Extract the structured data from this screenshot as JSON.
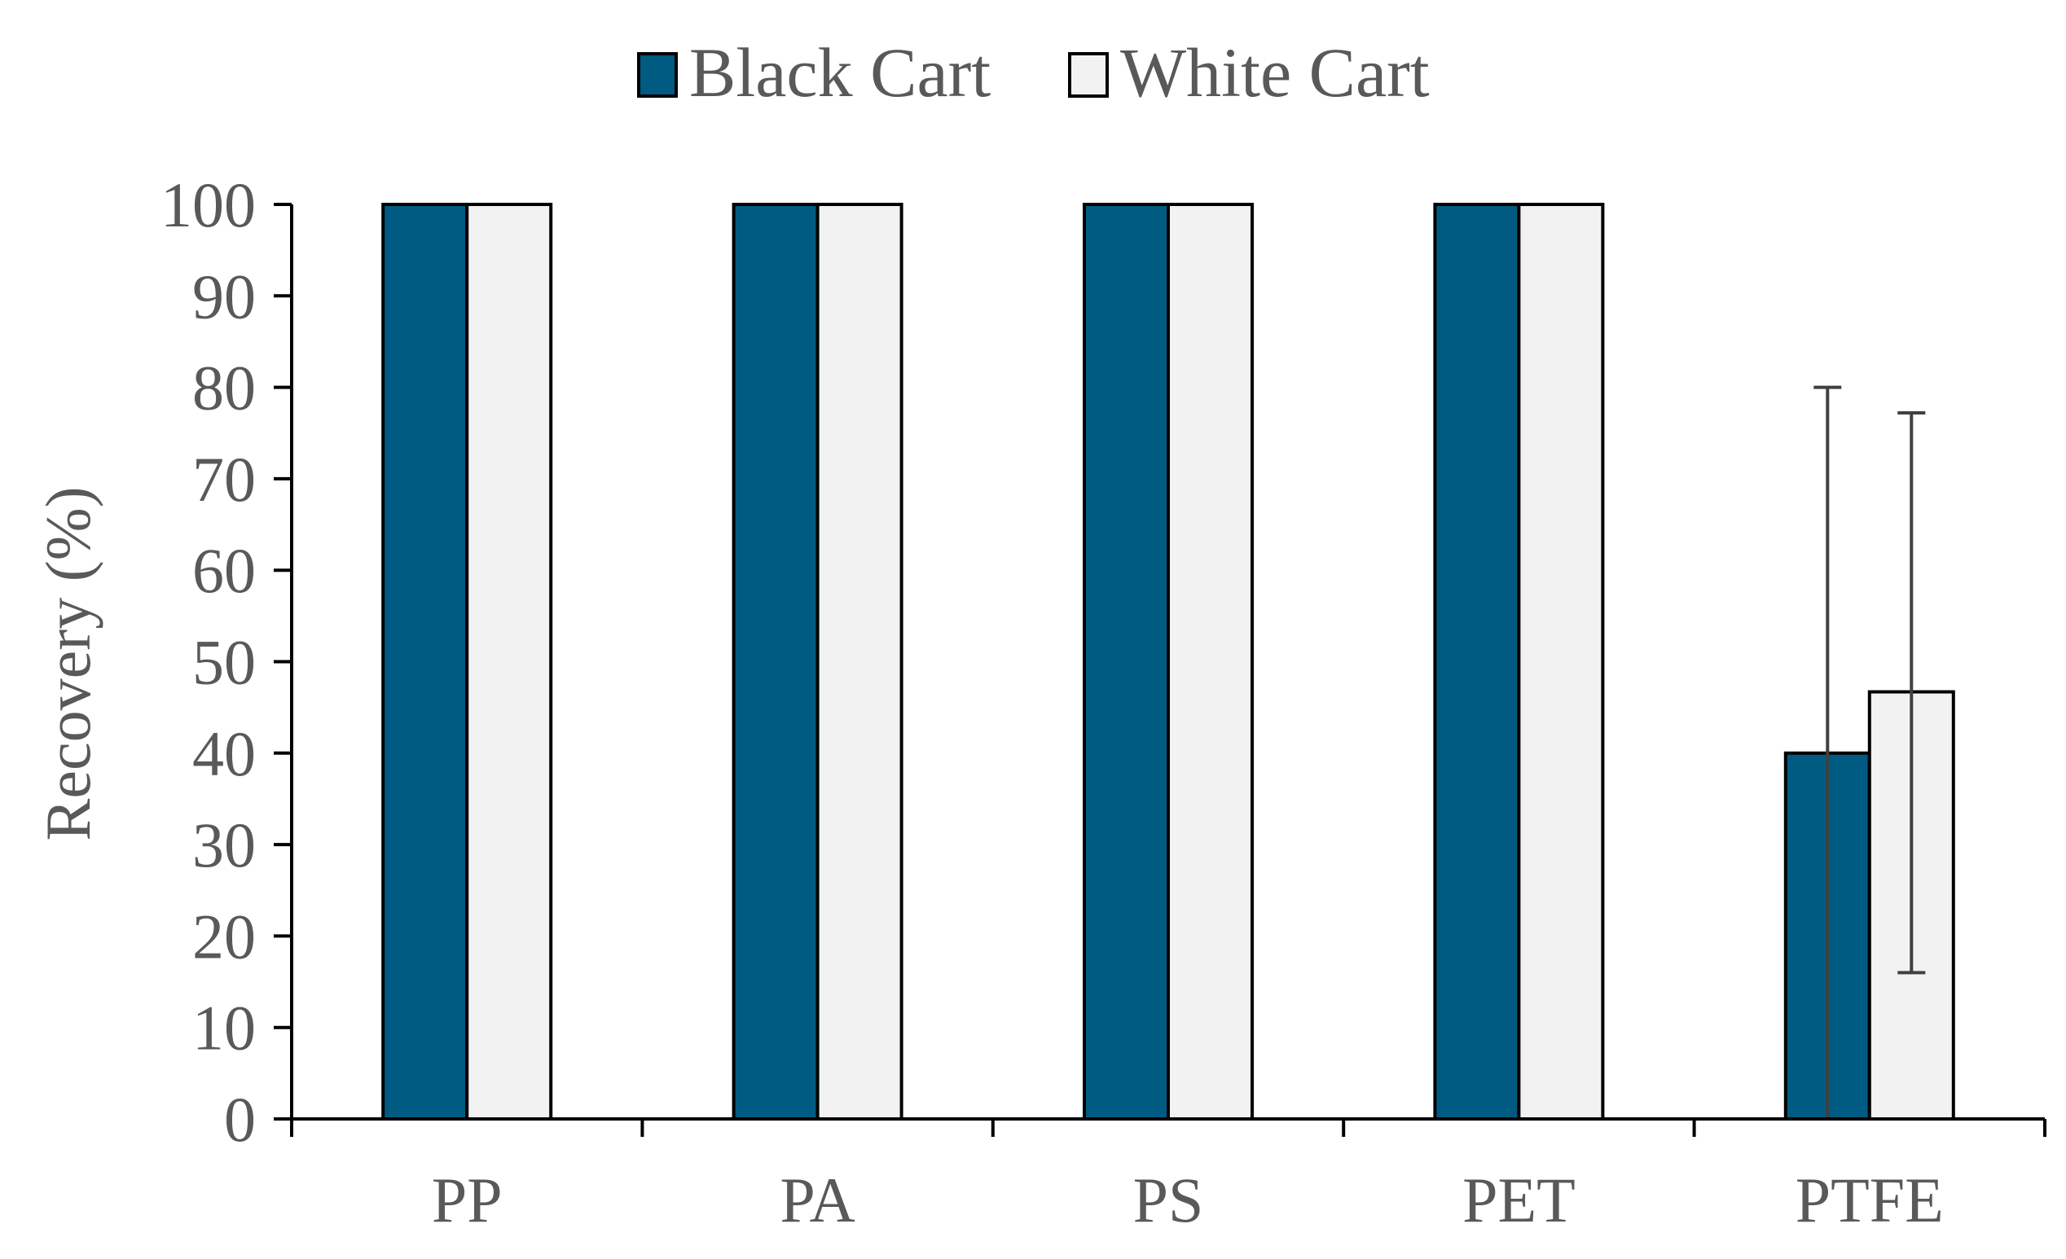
{
  "chart_data": {
    "type": "bar",
    "categories": [
      "PP",
      "PA",
      "PS",
      "PET",
      "PTFE"
    ],
    "series": [
      {
        "name": "Black Cart",
        "color": "#005b83",
        "values": [
          100,
          100,
          100,
          100,
          40
        ],
        "error_low": [
          null,
          null,
          null,
          null,
          0
        ],
        "error_high": [
          null,
          null,
          null,
          null,
          80
        ]
      },
      {
        "name": "White Cart",
        "color": "#f2f2f2",
        "values": [
          100,
          100,
          100,
          100,
          46.7
        ],
        "error_low": [
          null,
          null,
          null,
          null,
          16
        ],
        "error_high": [
          null,
          null,
          null,
          null,
          77.2
        ]
      }
    ],
    "title": "",
    "xlabel": "",
    "ylabel": "Recovery (%)",
    "ylim": [
      0,
      100
    ],
    "yticks": [
      0,
      10,
      20,
      30,
      40,
      50,
      60,
      70,
      80,
      90,
      100
    ],
    "grid": false,
    "legend_position": "top-center"
  }
}
